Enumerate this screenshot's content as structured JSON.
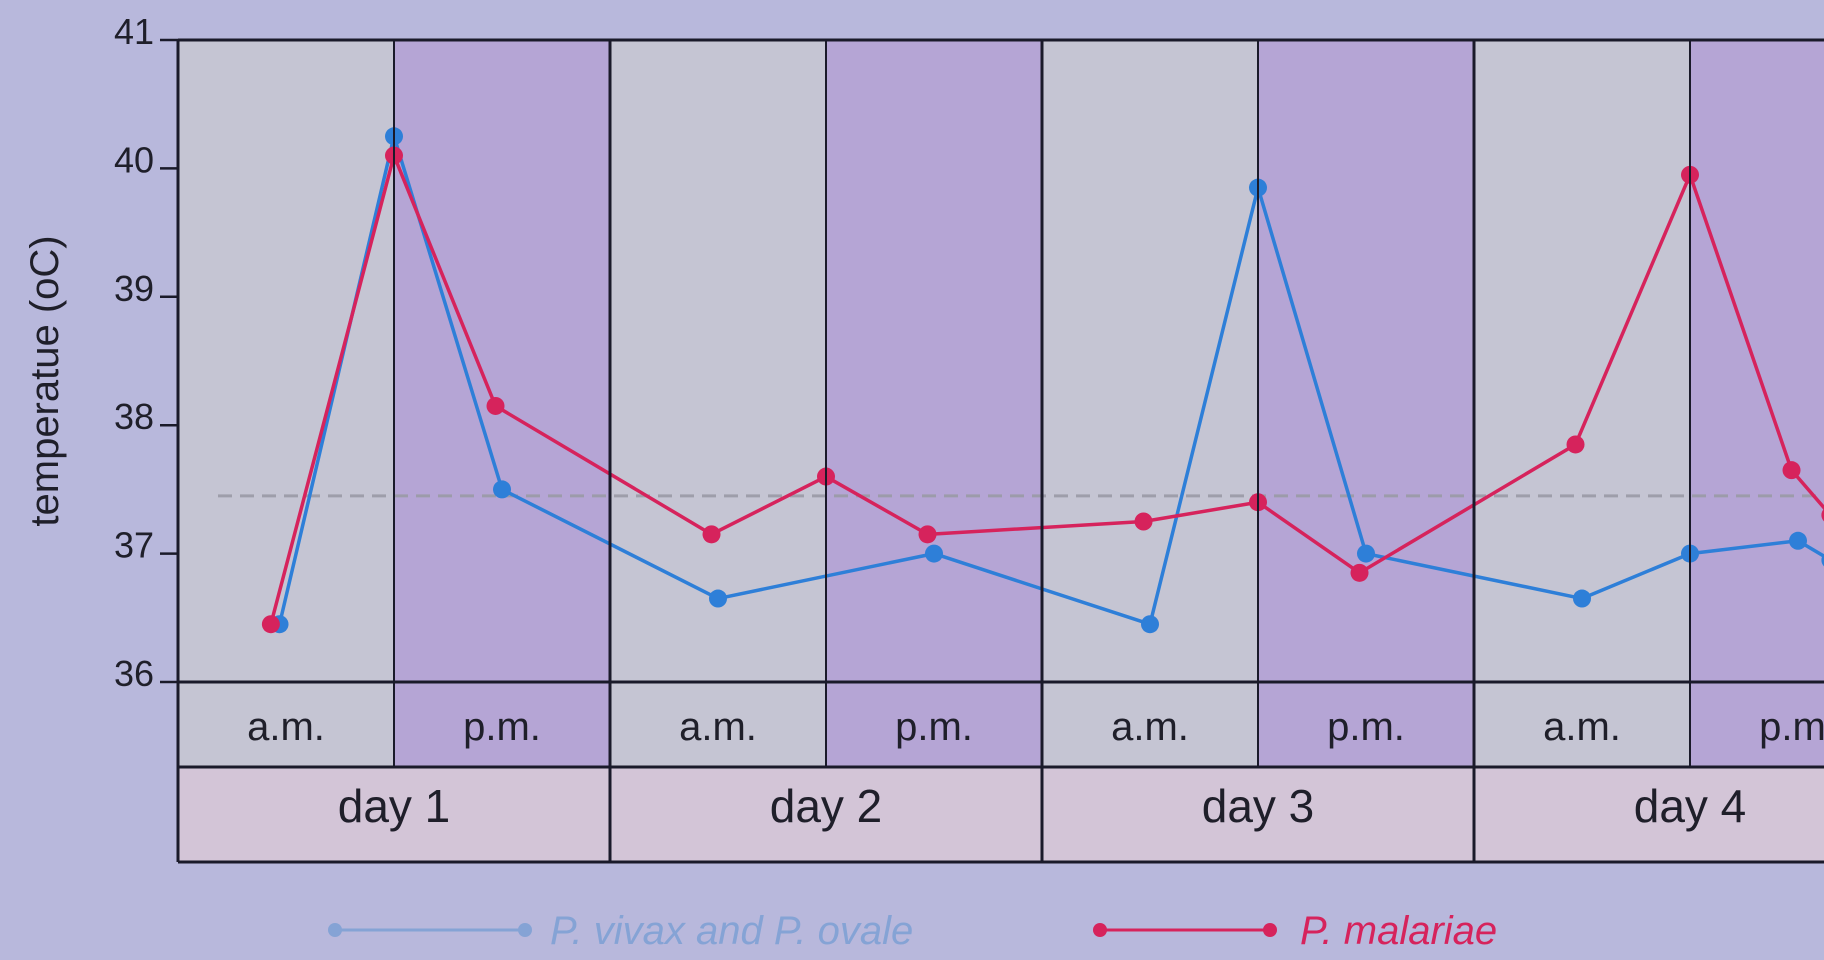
{
  "chart_data": {
    "type": "line",
    "ylabel": "temperatue (oC)",
    "ylim": [
      36,
      41
    ],
    "y_ticks": [
      "36",
      "37",
      "38",
      "39",
      "40",
      "41"
    ],
    "grid": false,
    "legend_position": "bottom",
    "reference_line": {
      "value": 37.45,
      "style": "dashed"
    },
    "x_categories": [
      "a.m.",
      "p.m.",
      "a.m.",
      "p.m.",
      "a.m.",
      "p.m.",
      "a.m.",
      "p.m."
    ],
    "days": [
      "day 1",
      "day 2",
      "day 3",
      "day 4"
    ],
    "colors": {
      "background": "#b8b8dc",
      "am_band": "#c5c5d3",
      "pm_band": "#b5a5d5",
      "day_row": "#d3c5d7",
      "vivax": "#2e7fd8",
      "malariae": "#d6235c",
      "vivax_legend": "#85a3d5",
      "malariae_legend": "#d6235c"
    },
    "series": [
      {
        "name": "P. vivax and P. ovale",
        "points": [
          {
            "x": 0.47,
            "y": 36.45
          },
          {
            "x": 1.0,
            "y": 40.25
          },
          {
            "x": 1.5,
            "y": 37.5
          },
          {
            "x": 2.5,
            "y": 36.65
          },
          {
            "x": 3.5,
            "y": 37.0
          },
          {
            "x": 4.5,
            "y": 36.45
          },
          {
            "x": 5.0,
            "y": 39.85
          },
          {
            "x": 5.5,
            "y": 37.0
          },
          {
            "x": 6.5,
            "y": 36.65
          },
          {
            "x": 7.0,
            "y": 37.0
          },
          {
            "x": 7.5,
            "y": 37.1
          },
          {
            "x": 7.65,
            "y": 36.95
          }
        ]
      },
      {
        "name": "P. malariae",
        "points": [
          {
            "x": 0.43,
            "y": 36.45
          },
          {
            "x": 1.0,
            "y": 40.1
          },
          {
            "x": 1.47,
            "y": 38.15
          },
          {
            "x": 2.47,
            "y": 37.15
          },
          {
            "x": 3.0,
            "y": 37.6
          },
          {
            "x": 3.47,
            "y": 37.15
          },
          {
            "x": 4.47,
            "y": 37.25
          },
          {
            "x": 5.0,
            "y": 37.4
          },
          {
            "x": 5.47,
            "y": 36.85
          },
          {
            "x": 6.47,
            "y": 37.85
          },
          {
            "x": 7.0,
            "y": 39.95
          },
          {
            "x": 7.47,
            "y": 37.65
          },
          {
            "x": 7.65,
            "y": 37.3
          }
        ]
      }
    ]
  }
}
